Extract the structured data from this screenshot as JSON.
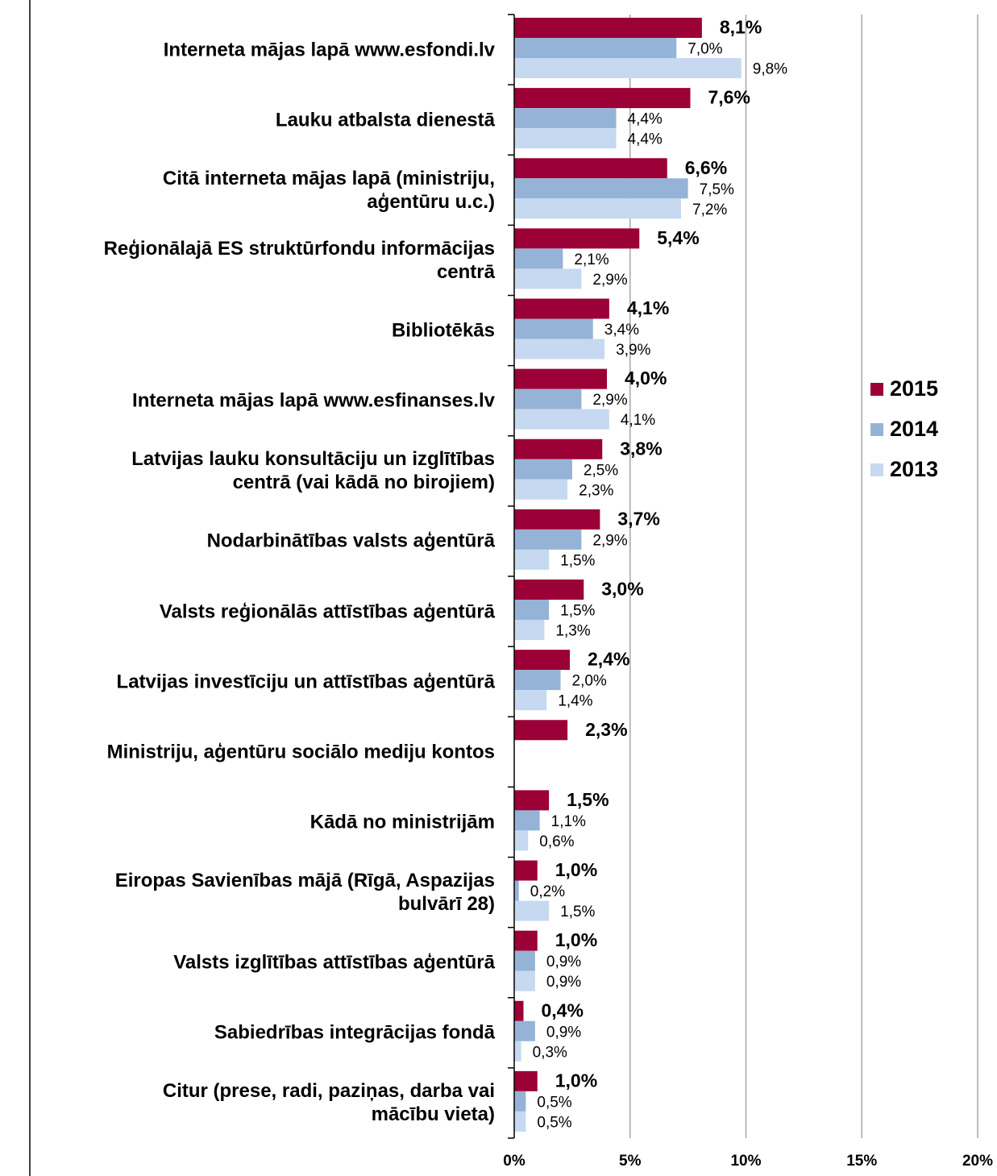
{
  "chart_data": {
    "type": "bar",
    "orientation": "horizontal",
    "categories": [
      "Interneta mājas lapā www.esfondi.lv",
      "Lauku atbalsta dienestā",
      "Citā interneta mājas lapā (ministriju,\naģentūru u.c.)",
      "Reģionālajā ES struktūrfondu informācijas\ncentrā",
      "Bibliotēkās",
      "Interneta mājas lapā www.esfinanses.lv",
      "Latvijas lauku konsultāciju un izglītības\ncentrā (vai kādā no birojiem)",
      "Nodarbinātības valsts aģentūrā",
      "Valsts reģionālās attīstības aģentūrā",
      "Latvijas investīciju un attīstības aģentūrā",
      "Ministriju, aģentūru sociālo mediju kontos",
      "Kādā no ministrijām",
      "Eiropas Savienības mājā (Rīgā, Aspazijas\nbulvārī 28)",
      "Valsts izglītības attīstības aģentūrā",
      "Sabiedrības integrācijas fondā",
      "Citur (prese, radi, paziņas, darba vai\nmācību vieta)"
    ],
    "series": [
      {
        "name": "2015",
        "color": "#9b0036",
        "values": [
          8.1,
          7.6,
          6.6,
          5.4,
          4.1,
          4.0,
          3.8,
          3.7,
          3.0,
          2.4,
          2.3,
          1.5,
          1.0,
          1.0,
          0.4,
          1.0
        ],
        "value_labels": [
          "8,1%",
          "7,6%",
          "6,6%",
          "5,4%",
          "4,1%",
          "4,0%",
          "3,8%",
          "3,7%",
          "3,0%",
          "2,4%",
          "2,3%",
          "1,5%",
          "1,0%",
          "1,0%",
          "0,4%",
          "1,0%"
        ]
      },
      {
        "name": "2014",
        "color": "#95b3d7",
        "values": [
          7.0,
          4.4,
          7.5,
          2.1,
          3.4,
          2.9,
          2.5,
          2.9,
          1.5,
          2.0,
          null,
          1.1,
          0.2,
          0.9,
          0.9,
          0.5
        ],
        "value_labels": [
          "7,0%",
          "4,4%",
          "7,5%",
          "2,1%",
          "3,4%",
          "2,9%",
          "2,5%",
          "2,9%",
          "1,5%",
          "2,0%",
          null,
          "1,1%",
          "0,2%",
          "0,9%",
          "0,9%",
          "0,5%"
        ]
      },
      {
        "name": "2013",
        "color": "#c6d9f1",
        "values": [
          9.8,
          4.4,
          7.2,
          2.9,
          3.9,
          4.1,
          2.3,
          1.5,
          1.3,
          1.4,
          null,
          0.6,
          1.5,
          0.9,
          0.3,
          0.5
        ],
        "value_labels": [
          "9,8%",
          "4,4%",
          "7,2%",
          "2,9%",
          "3,9%",
          "4,1%",
          "2,3%",
          "1,5%",
          "1,3%",
          "1,4%",
          null,
          "0,6%",
          "1,5%",
          "0,9%",
          "0,3%",
          "0,5%"
        ]
      }
    ],
    "xlim": [
      0,
      20
    ],
    "xticks": [
      {
        "value": 0,
        "label": "0%"
      },
      {
        "value": 5,
        "label": "5%"
      },
      {
        "value": 10,
        "label": "10%"
      },
      {
        "value": 15,
        "label": "15%"
      },
      {
        "value": 20,
        "label": "20%"
      }
    ],
    "grid": true,
    "legend": "right"
  }
}
